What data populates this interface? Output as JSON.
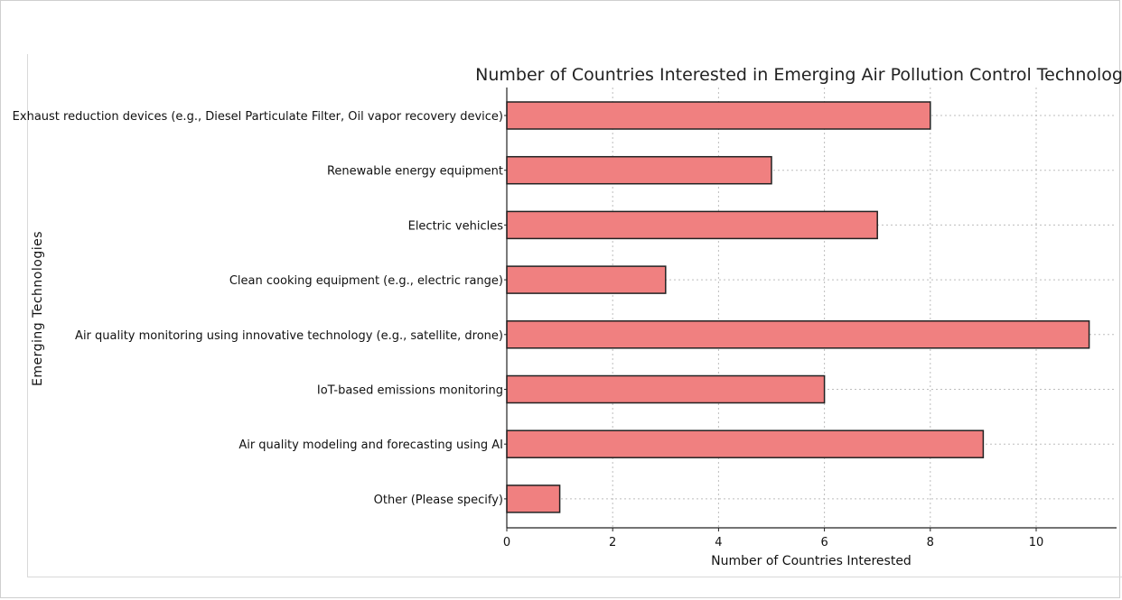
{
  "chart_data": {
    "type": "bar",
    "orientation": "horizontal",
    "title": "Number of Countries Interested in Emerging Air Pollution Control Technologies",
    "xlabel": "Number of Countries Interested",
    "ylabel": "Emerging Technologies",
    "categories": [
      "Exhaust reduction devices (e.g., Diesel Particulate Filter, Oil vapor recovery device)",
      "Renewable energy equipment",
      "Electric vehicles",
      "Clean cooking equipment (e.g., electric range)",
      "Air quality monitoring using innovative technology (e.g., satellite, drone)",
      "IoT-based emissions monitoring",
      "Air quality modeling and forecasting using AI",
      "Other (Please specify)"
    ],
    "values": [
      8,
      5,
      7,
      3,
      11,
      6,
      9,
      1
    ],
    "xlim": [
      0,
      11.5
    ],
    "xticks": [
      0,
      2,
      4,
      6,
      8,
      10
    ],
    "grid": true,
    "bar_color": "#f08080",
    "edge_color": "#222222"
  }
}
